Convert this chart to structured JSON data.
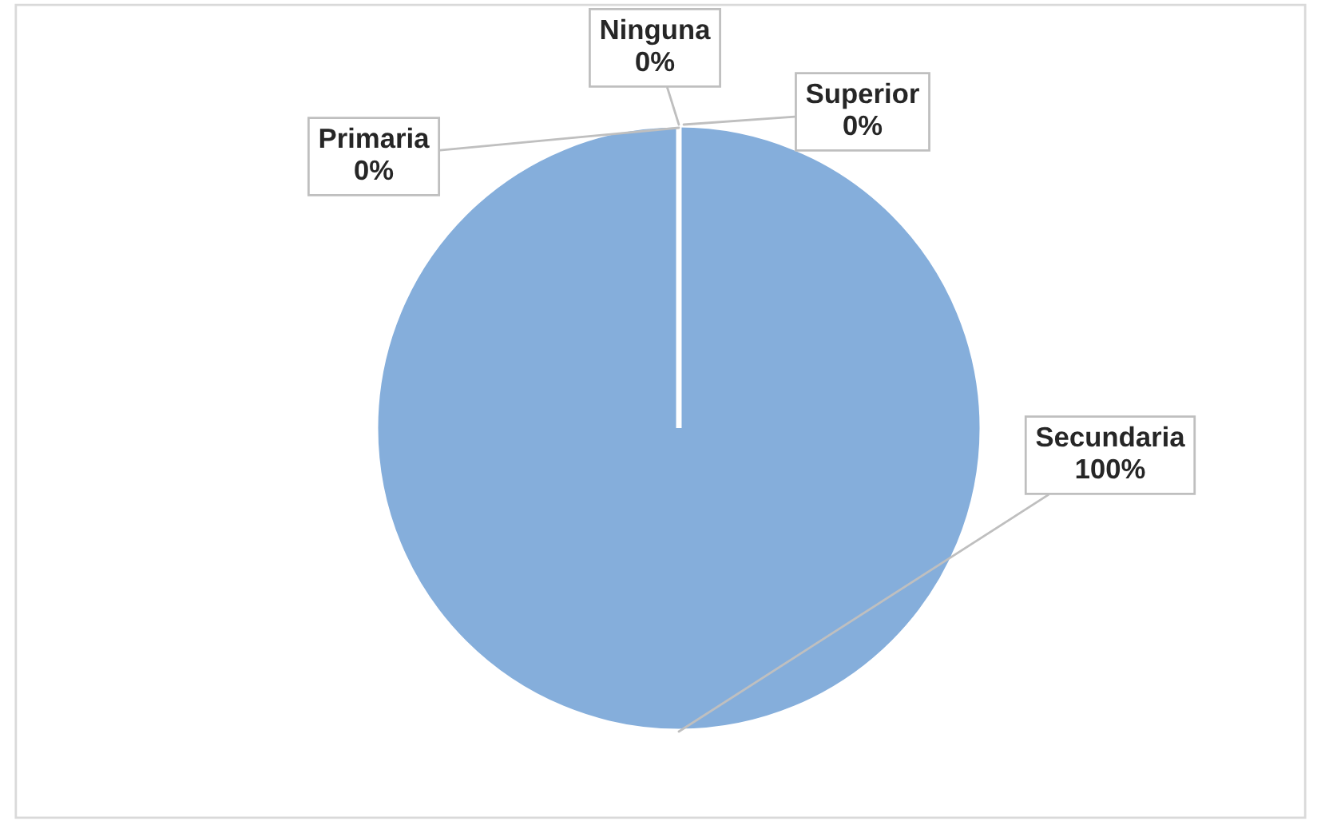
{
  "chart_data": {
    "type": "pie",
    "categories": [
      "Ninguna",
      "Primaria",
      "Secundaria",
      "Superior"
    ],
    "values": [
      0,
      0,
      100,
      0
    ],
    "colors": [
      "#5b9bd5",
      "#ed7d31",
      "#85aedb",
      "#ffc000"
    ],
    "value_labels": [
      "0%",
      "0%",
      "100%",
      "0%"
    ],
    "legend": false
  }
}
